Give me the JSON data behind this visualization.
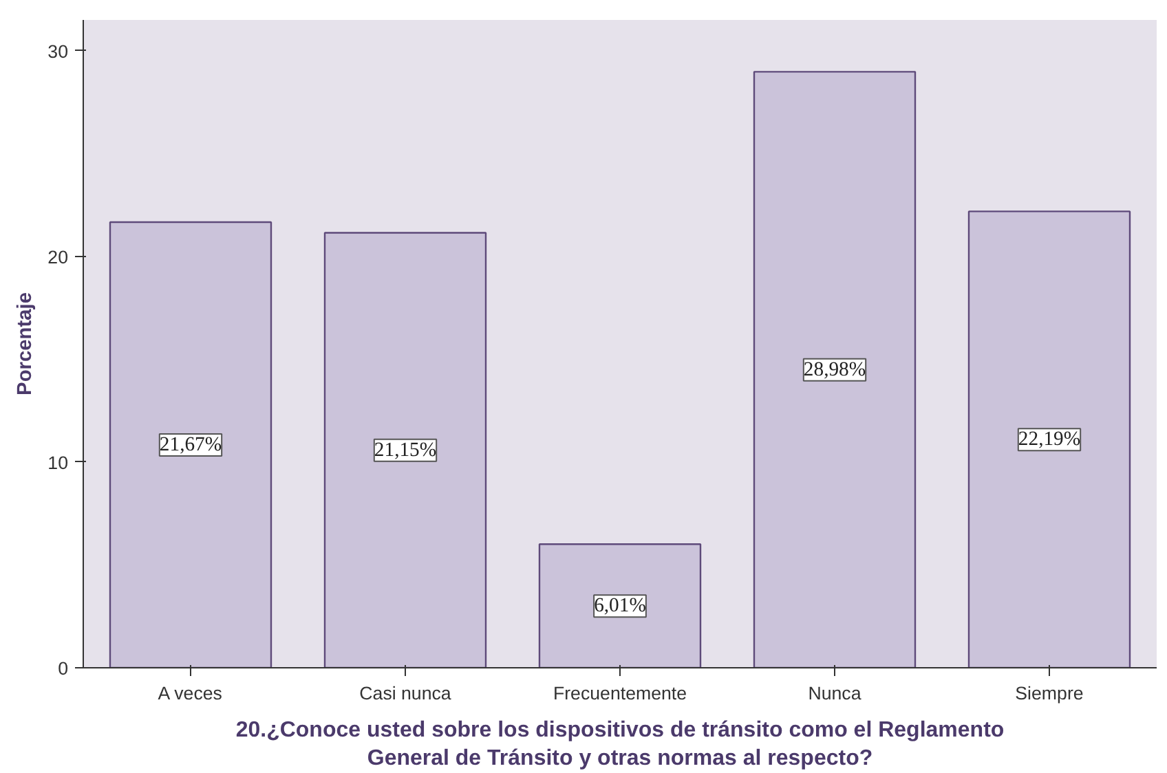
{
  "chart_data": {
    "type": "bar",
    "xlabel": "20.¿Conoce usted sobre los dispositivos de tránsito como el Reglamento General de Tránsito y otras normas al respecto?",
    "ylabel": "Porcentaje",
    "categories": [
      "A veces",
      "Casi nunca",
      "Frecuentemente",
      "Nunca",
      "Siempre"
    ],
    "values": [
      21.67,
      21.15,
      6.01,
      28.98,
      22.19
    ],
    "value_labels": [
      "21,67%",
      "21,15%",
      "6,01%",
      "28,98%",
      "22,19%"
    ],
    "color": "#cbc3da",
    "ylim": [
      0,
      31.5
    ],
    "yticks": [
      0,
      10,
      20,
      30
    ],
    "grid": false
  }
}
